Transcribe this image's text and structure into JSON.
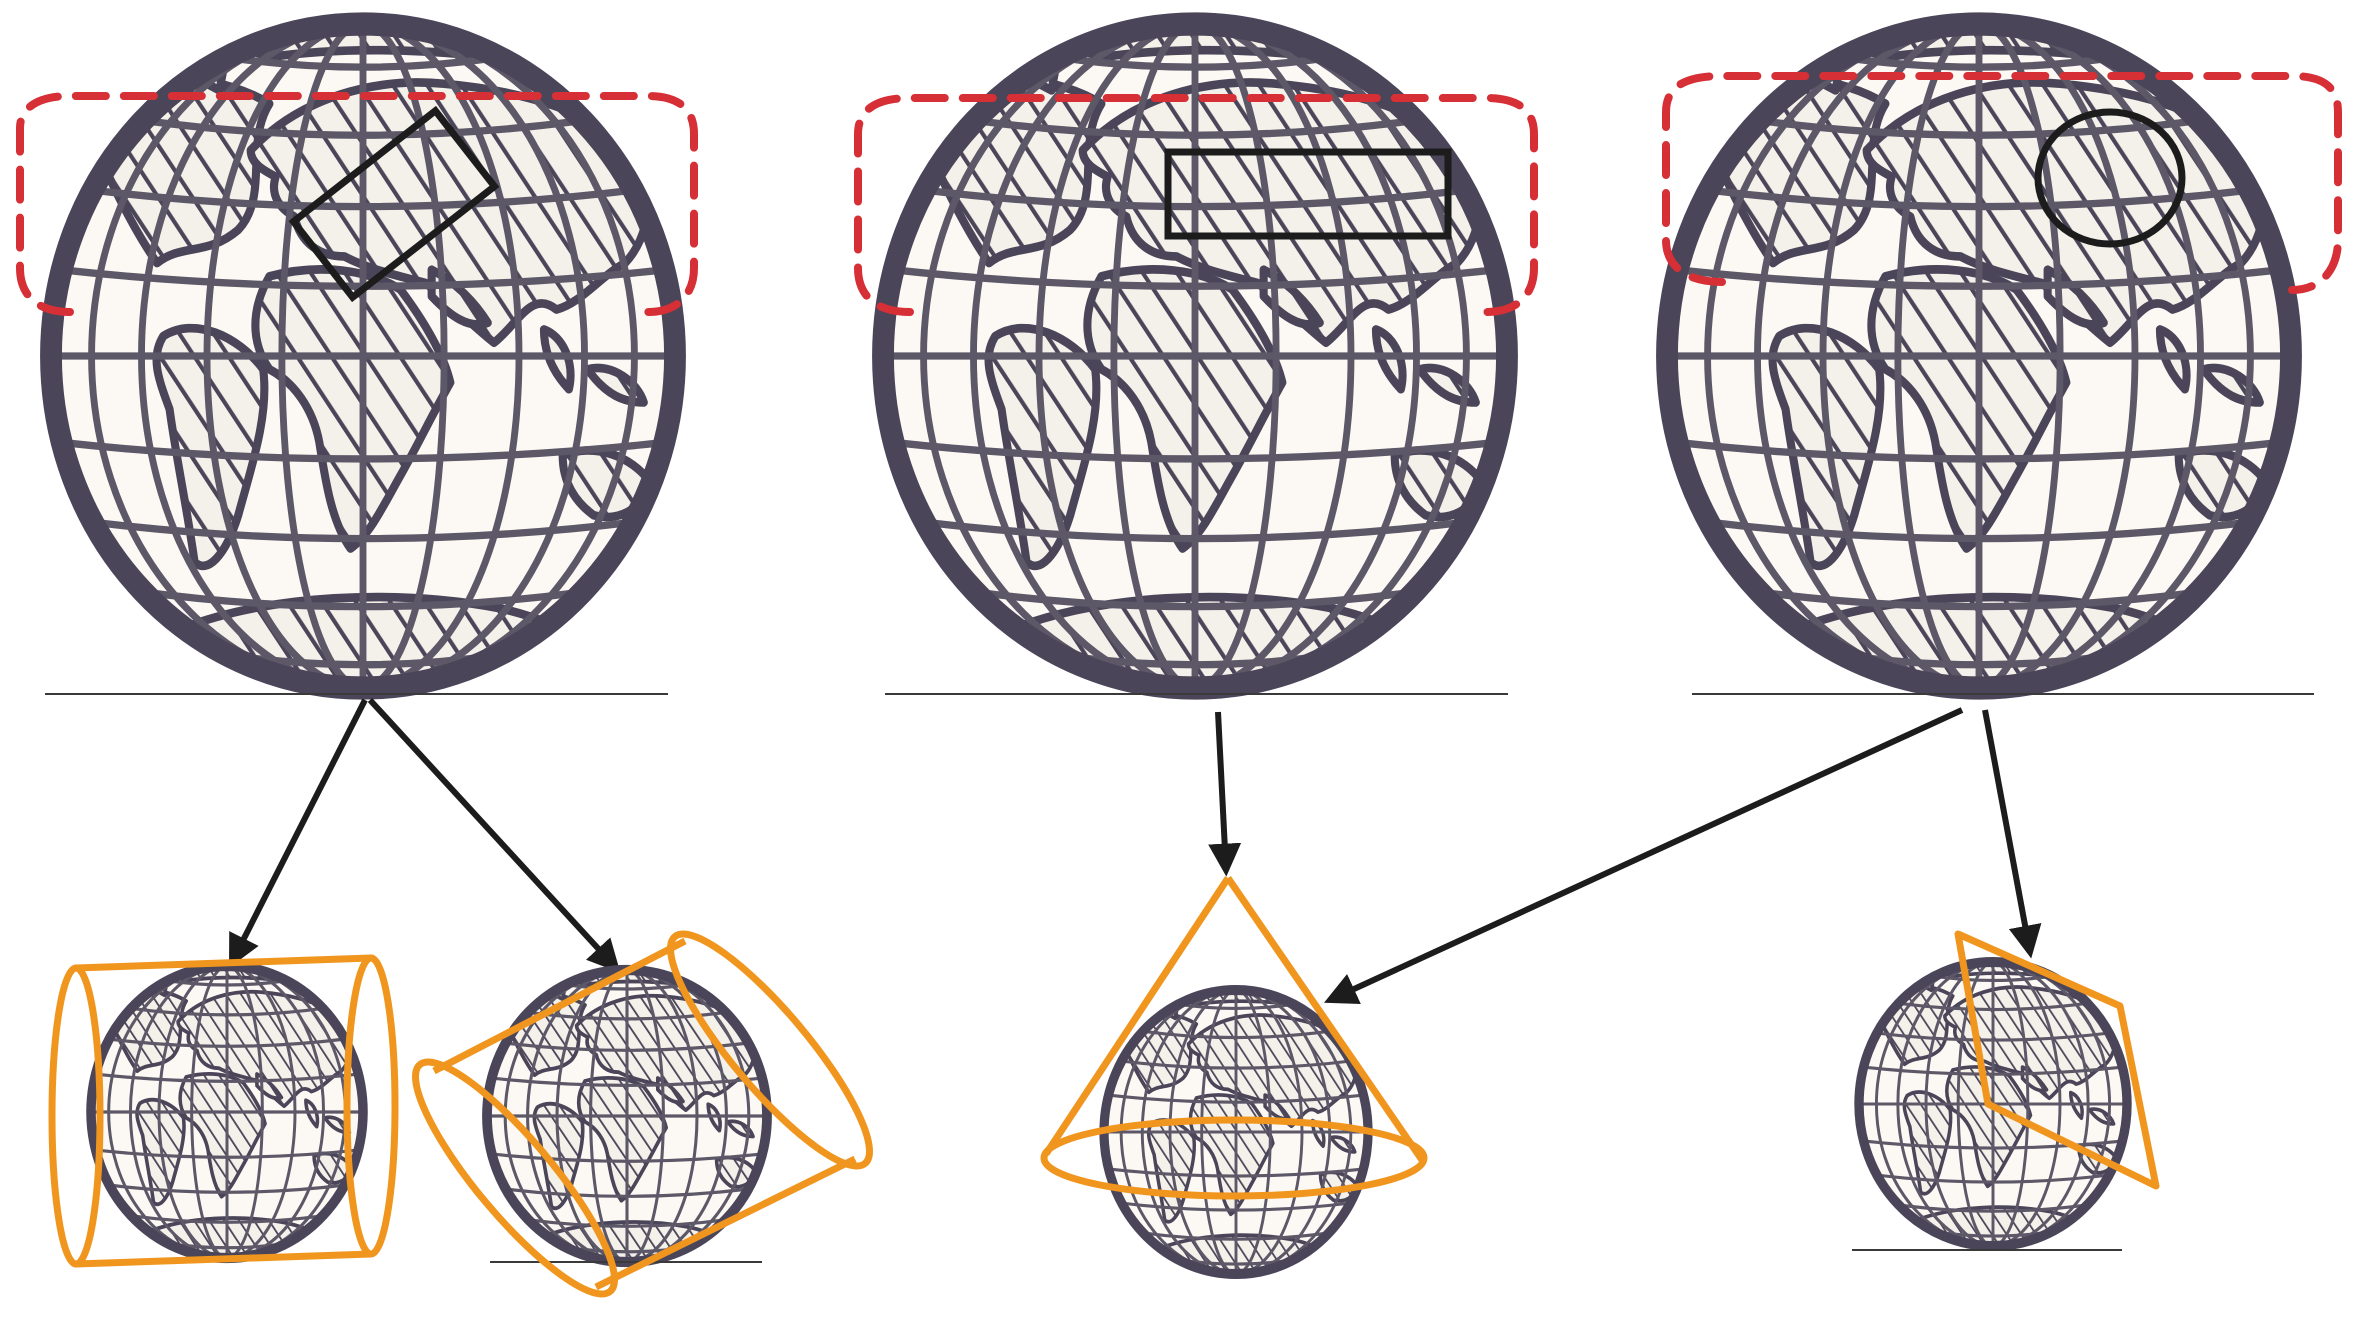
{
  "colors": {
    "region_outline": "#d62f36",
    "area_outline": "#1c1c1c",
    "surface_outline": "#f0961e",
    "arrow": "#1c1c1c",
    "globe_outline": "#4a4558",
    "globe_fill": "#fcf9f4"
  },
  "panels": [
    {
      "area_shape": "rotated-rectangle",
      "projection_surfaces": [
        "cylinder",
        "oblique-cylinder"
      ]
    },
    {
      "area_shape": "horizontal-rectangle",
      "projection_surfaces": [
        "cone"
      ]
    },
    {
      "area_shape": "circle",
      "projection_surfaces": [
        "cone",
        "plane"
      ]
    }
  ]
}
